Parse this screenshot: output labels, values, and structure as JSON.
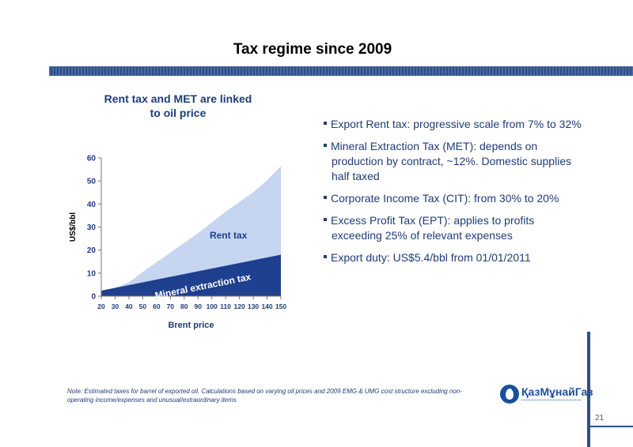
{
  "slide": {
    "title": "Tax regime since 2009",
    "page_number": "21"
  },
  "chart_data": {
    "type": "area",
    "title": "Rent tax and MET are linked to oil price",
    "title_lines": [
      "Rent tax and MET are linked",
      "to oil price"
    ],
    "xlabel": "Brent price",
    "ylabel": "US$/bbl",
    "categories": [
      "20",
      "30",
      "40",
      "50",
      "60",
      "70",
      "80",
      "90",
      "100",
      "110",
      "120",
      "130",
      "140",
      "150"
    ],
    "x": [
      20,
      30,
      40,
      50,
      60,
      70,
      80,
      90,
      100,
      110,
      120,
      130,
      140,
      150
    ],
    "yticks": [
      0,
      10,
      20,
      30,
      40,
      50,
      60
    ],
    "ylim": [
      0,
      60
    ],
    "stacked": true,
    "series": [
      {
        "name": "Mineral extraction tax",
        "color": "#1f3f8f",
        "values": [
          2.4,
          3.6,
          4.8,
          6.0,
          7.2,
          8.4,
          9.6,
          10.8,
          12.0,
          13.2,
          14.4,
          15.6,
          16.8,
          18.0
        ]
      },
      {
        "name": "Rent tax",
        "color": "#c6d5f0",
        "values": [
          0,
          0,
          1.2,
          4.5,
          7.5,
          10.5,
          13.5,
          16.5,
          20.0,
          23.5,
          26.5,
          29.5,
          33.5,
          38.5
        ]
      }
    ],
    "annotations": [
      "Rent tax",
      "Mineral extraction tax"
    ]
  },
  "bullets": [
    "Export Rent tax: progressive scale from 7% to 32%",
    "Mineral Extraction Tax (MET): depends on production by contract, ~12%. Domestic supplies half taxed",
    "Corporate Income Tax (CIT): from 30% to 20%",
    "Excess Profit Tax (EPT): applies to profits exceeding 25% of relevant expenses",
    "Export duty: US$5.4/bbl from 01/01/2011"
  ],
  "note": "Note: Estimated taxes for barrel of exported oil. Calculations based on varying oil prices and 2009 EMG & UMG cost structure excluding non-operating income/expenses and unusual/extraordinary items",
  "logo": {
    "text": "ҚазМұнайГаз",
    "color": "#1a4f9c",
    "icon": "drop-logo-icon"
  },
  "colors": {
    "accent": "#1f3c78",
    "bar": "#2d4f86"
  }
}
